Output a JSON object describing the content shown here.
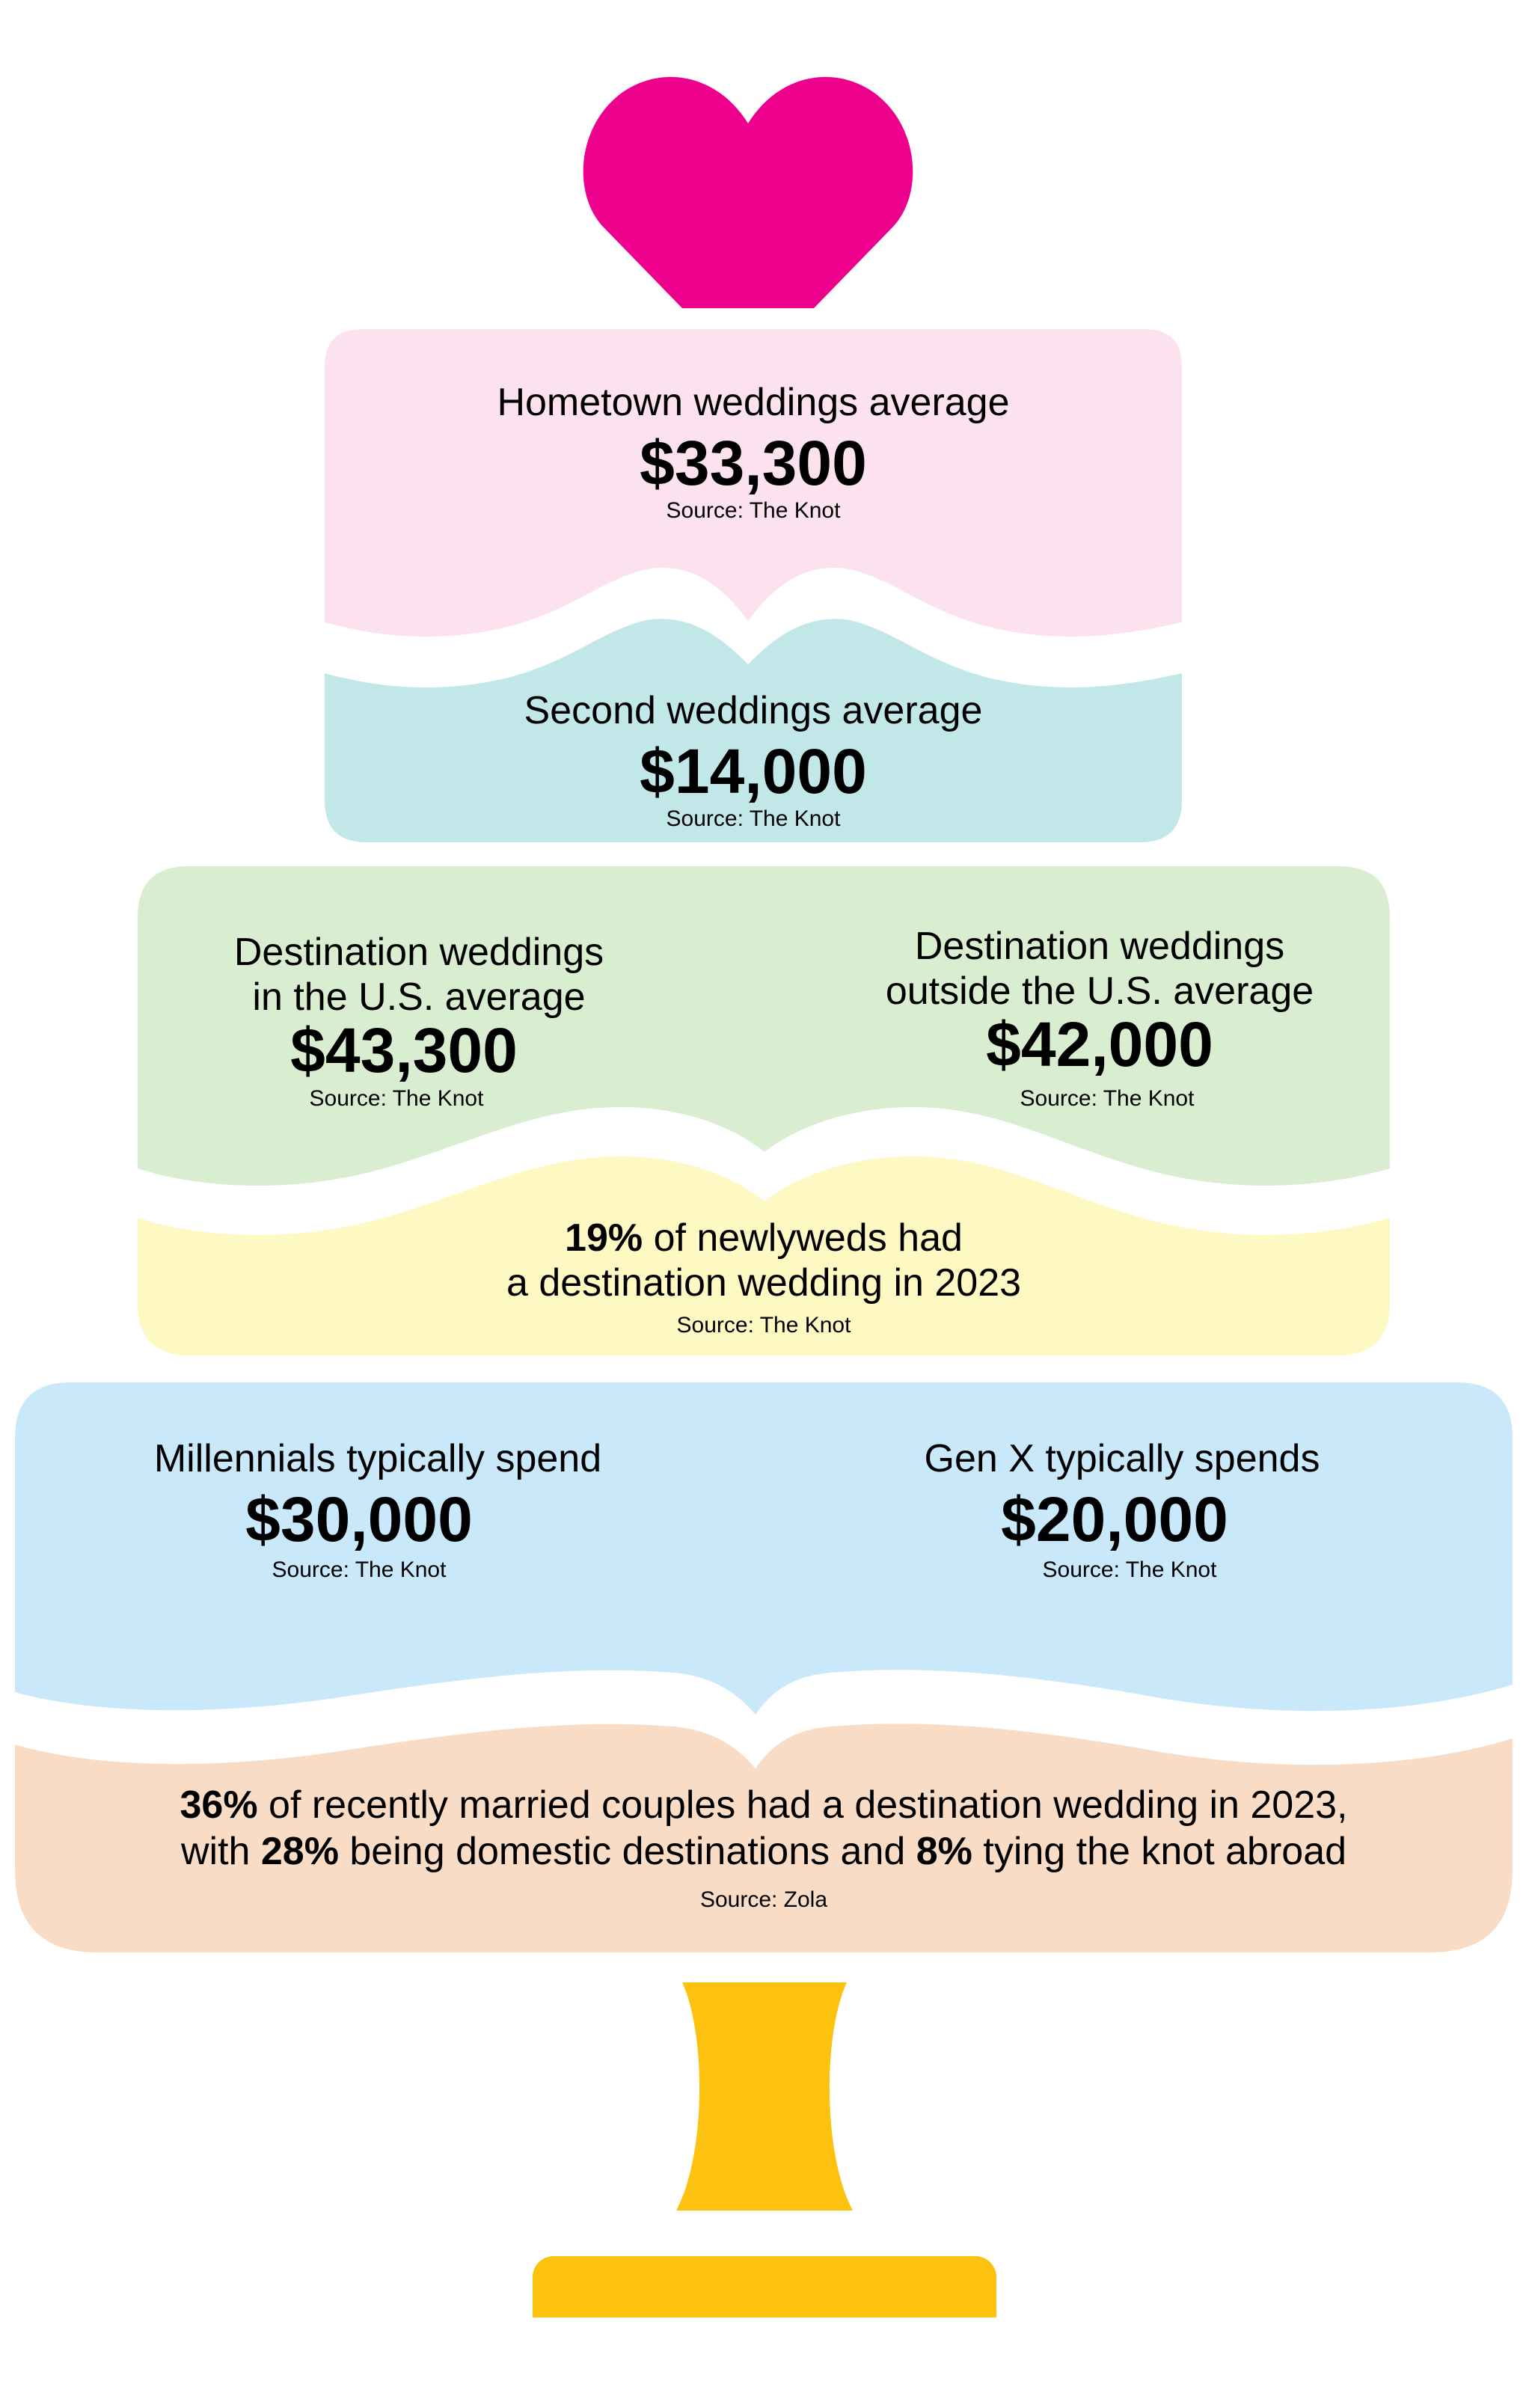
{
  "colors": {
    "heart": "#EC008C",
    "tier1": "#FBE2EE",
    "tier2": "#C2E7E9",
    "tier3": "#D9EDD1",
    "tier4": "#FEF8C2",
    "tier5": "#C9E8F9",
    "tier6": "#F9DCC6",
    "stand": "#FDC10F"
  },
  "tier1": {
    "label": "Hometown weddings average",
    "value": "$33,300",
    "source": "Source: The Knot"
  },
  "tier2": {
    "label": "Second weddings average",
    "value": "$14,000",
    "source": "Source: The Knot"
  },
  "tier3": {
    "left": {
      "label_line1": "Destination weddings",
      "label_line2": "in the U.S. average",
      "value": "$43,300",
      "source": "Source: The Knot"
    },
    "right": {
      "label_line1": "Destination weddings",
      "label_line2": "outside the U.S. average",
      "value": "$42,000",
      "source": "Source: The Knot"
    }
  },
  "tier4": {
    "line1_bold": "19%",
    "line1_rest": " of newlyweds had",
    "line2": "a destination wedding in 2023",
    "source": "Source: The Knot"
  },
  "tier5": {
    "left": {
      "label": "Millennials typically spend",
      "value": "$30,000",
      "source": "Source: The Knot"
    },
    "right": {
      "label": "Gen X typically spends",
      "value": "$20,000",
      "source": "Source: The Knot"
    }
  },
  "tier6": {
    "line1_bold": "36%",
    "line1_rest": " of recently married couples had a destination wedding in 2023,",
    "line2_a": "with ",
    "line2_bold1": "28%",
    "line2_b": " being domestic destinations and ",
    "line2_bold2": "8%",
    "line2_c": " tying the knot abroad",
    "source": "Source: Zola"
  }
}
